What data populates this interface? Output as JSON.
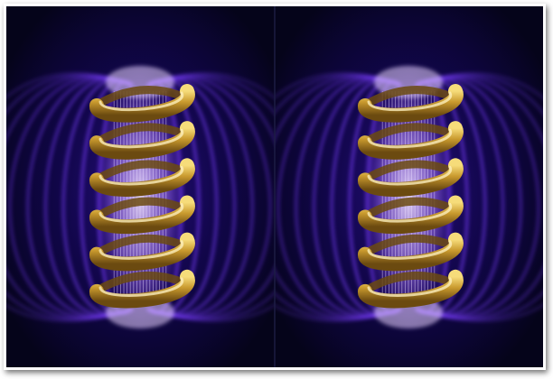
{
  "image": {
    "panels": [
      {
        "name": "left-panel",
        "coils": 6
      },
      {
        "name": "right-panel",
        "coils": 6
      }
    ],
    "colors": {
      "background": "#05041a",
      "field_glow": "#7a3cff",
      "field_core": "#f3e6ff",
      "coil_gold_light": "#f6dc7a",
      "coil_gold_mid": "#c99a2e",
      "coil_gold_dark": "#6b4a10"
    }
  }
}
